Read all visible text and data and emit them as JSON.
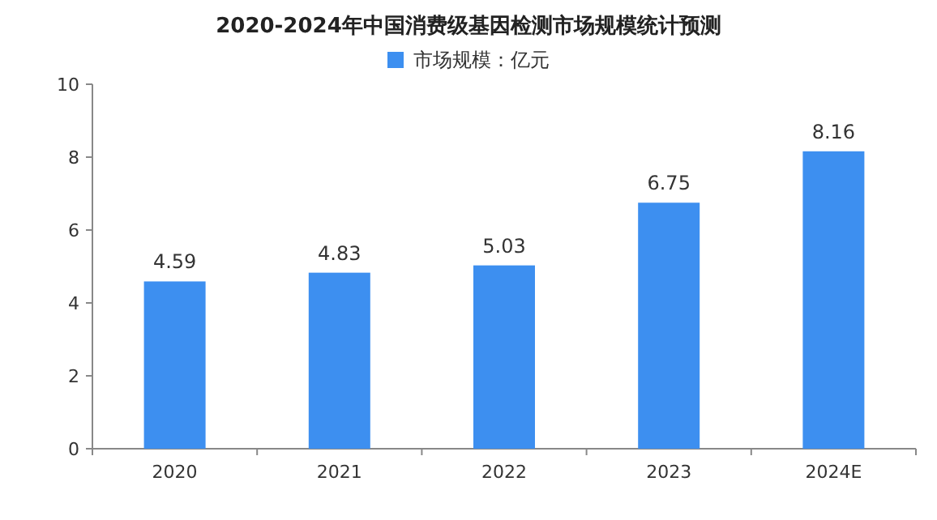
{
  "chart_data": {
    "type": "bar",
    "title": "2020-2024年中国消费级基因检测市场规模统计预测",
    "categories": [
      "2020",
      "2021",
      "2022",
      "2023",
      "2024E"
    ],
    "series": [
      {
        "name": "市场规模：亿元",
        "color": "#3d8ff0",
        "values": [
          4.59,
          4.83,
          5.03,
          6.75,
          8.16
        ]
      }
    ],
    "ylim": [
      0,
      10
    ],
    "yticks": [
      0,
      2,
      4,
      6,
      8,
      10
    ],
    "data_labels": true,
    "legend": "top",
    "grid": false
  }
}
